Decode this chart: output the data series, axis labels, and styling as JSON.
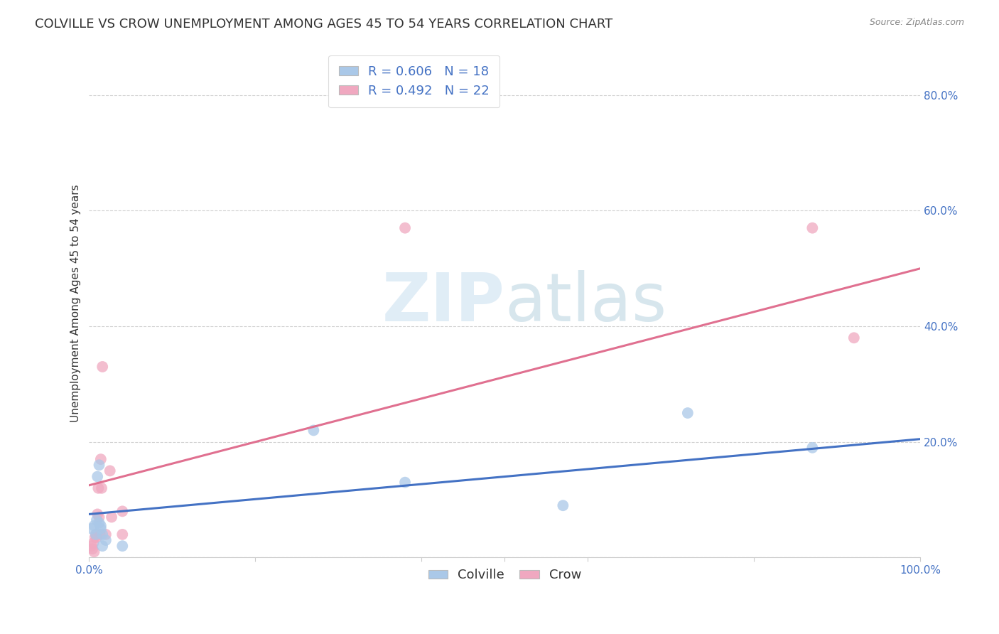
{
  "title": "COLVILLE VS CROW UNEMPLOYMENT AMONG AGES 45 TO 54 YEARS CORRELATION CHART",
  "source": "Source: ZipAtlas.com",
  "ylabel": "Unemployment Among Ages 45 to 54 years",
  "xlim": [
    0,
    1.0
  ],
  "ylim": [
    0,
    0.88
  ],
  "colville_R": 0.606,
  "colville_N": 18,
  "crow_R": 0.492,
  "crow_N": 22,
  "colville_color": "#aac8e8",
  "crow_color": "#f0a8c0",
  "colville_line_color": "#4472c4",
  "crow_line_color": "#e07090",
  "watermark_zip": "ZIP",
  "watermark_atlas": "atlas",
  "colville_x": [
    0.003,
    0.006,
    0.008,
    0.009,
    0.01,
    0.012,
    0.012,
    0.014,
    0.014,
    0.016,
    0.016,
    0.02,
    0.04,
    0.27,
    0.38,
    0.57,
    0.72,
    0.87
  ],
  "colville_y": [
    0.05,
    0.055,
    0.04,
    0.065,
    0.14,
    0.16,
    0.06,
    0.055,
    0.05,
    0.04,
    0.02,
    0.03,
    0.02,
    0.22,
    0.13,
    0.09,
    0.25,
    0.19
  ],
  "crow_x": [
    0.003,
    0.004,
    0.005,
    0.006,
    0.007,
    0.008,
    0.009,
    0.01,
    0.011,
    0.012,
    0.013,
    0.014,
    0.015,
    0.016,
    0.02,
    0.025,
    0.027,
    0.04,
    0.04,
    0.38,
    0.87,
    0.92
  ],
  "crow_y": [
    0.02,
    0.015,
    0.025,
    0.01,
    0.035,
    0.04,
    0.035,
    0.075,
    0.12,
    0.07,
    0.04,
    0.17,
    0.12,
    0.33,
    0.04,
    0.15,
    0.07,
    0.08,
    0.04,
    0.57,
    0.57,
    0.38
  ],
  "colville_line_x": [
    0.0,
    1.0
  ],
  "colville_line_y": [
    0.075,
    0.205
  ],
  "crow_line_x": [
    0.0,
    1.0
  ],
  "crow_line_y": [
    0.125,
    0.5
  ],
  "background_color": "#ffffff",
  "grid_color": "#cccccc",
  "title_fontsize": 13,
  "axis_label_fontsize": 11,
  "tick_fontsize": 11,
  "legend_fontsize": 13,
  "marker_size": 130
}
